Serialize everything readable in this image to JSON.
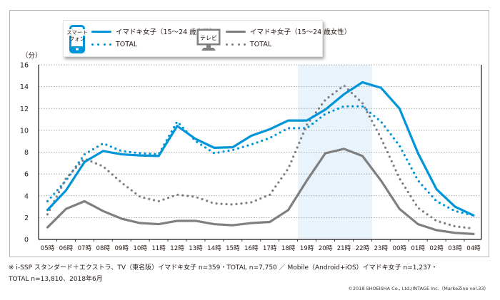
{
  "legend": {
    "phone_icon_text_line1": "スマート",
    "phone_icon_text_line2": "フォン",
    "tv_icon_text": "テレビ",
    "phone_idol_label": "イマドキ女子（15〜24 歳女性）",
    "phone_total_label": "TOTAL",
    "tv_idol_label": "イマドキ女子（15〜24 歳女性）",
    "tv_total_label": "TOTAL"
  },
  "colors": {
    "phone": "#0095d9",
    "tv": "#7f7f7f",
    "highlight": "#e8f3fc",
    "grid": "#8c8c8c",
    "axis": "#231815"
  },
  "note_line1": "※ i-SSP スタンダード＋エクストラ、TV（東名阪）イマドキ女子 n=359・TOTAL n=7,750 ／ Mobile（Android+iOS）イマドキ女子 n=1,237・",
  "note_line2": "TOTAL n=13,810、2018年6月",
  "credit": "©2018 SHOEISHA Co., Ltd./INTAGE Inc.（MarkeZine vol.33）",
  "chart_data": {
    "type": "line",
    "title": "",
    "xlabel": "",
    "ylabel": "（分）",
    "ylim": [
      0,
      16
    ],
    "yticks": [
      0,
      2,
      4,
      6,
      8,
      10,
      12,
      14,
      16
    ],
    "grid": true,
    "legend_position": "top",
    "highlight_range": [
      "19時",
      "22時"
    ],
    "categories": [
      "05時",
      "06時",
      "07時",
      "08時",
      "09時",
      "10時",
      "11時",
      "12時",
      "13時",
      "14時",
      "15時",
      "16時",
      "17時",
      "18時",
      "19時",
      "20時",
      "21時",
      "22時",
      "23時",
      "00時",
      "01時",
      "02時",
      "03時",
      "04時"
    ],
    "series": [
      {
        "name": "スマートフォン イマドキ女子（15〜24 歳女性）",
        "device": "phone",
        "style": "solid",
        "values": [
          2.7,
          4.5,
          7.1,
          8.1,
          7.8,
          7.7,
          7.65,
          10.4,
          9.2,
          8.4,
          8.45,
          9.5,
          10.1,
          10.9,
          10.9,
          11.9,
          13.3,
          14.4,
          13.9,
          12.0,
          7.9,
          4.6,
          3.0,
          2.2
        ]
      },
      {
        "name": "スマートフォン TOTAL",
        "device": "phone",
        "style": "dotted",
        "values": [
          3.5,
          5.4,
          7.8,
          8.8,
          8.1,
          7.9,
          7.8,
          10.8,
          9.0,
          7.9,
          8.2,
          8.7,
          9.3,
          10.2,
          10.2,
          11.5,
          12.2,
          12.2,
          10.8,
          8.6,
          5.4,
          3.5,
          2.6,
          2.2
        ]
      },
      {
        "name": "テレビ イマドキ女子（15〜24 歳女性）",
        "device": "tv",
        "style": "solid",
        "values": [
          1.1,
          2.8,
          3.5,
          2.6,
          1.9,
          1.5,
          1.4,
          1.7,
          1.7,
          1.4,
          1.3,
          1.5,
          1.6,
          2.7,
          5.4,
          7.9,
          8.3,
          7.65,
          5.4,
          2.8,
          1.4,
          0.85,
          0.6,
          0.5
        ]
      },
      {
        "name": "テレビ TOTAL",
        "device": "tv",
        "style": "dotted",
        "values": [
          2.3,
          5.6,
          7.4,
          6.7,
          5.2,
          3.9,
          3.5,
          4.1,
          3.9,
          3.3,
          3.2,
          3.4,
          4.1,
          6.5,
          10.5,
          12.8,
          14.1,
          12.5,
          9.3,
          5.6,
          2.9,
          1.7,
          1.2,
          1.0
        ]
      }
    ]
  }
}
